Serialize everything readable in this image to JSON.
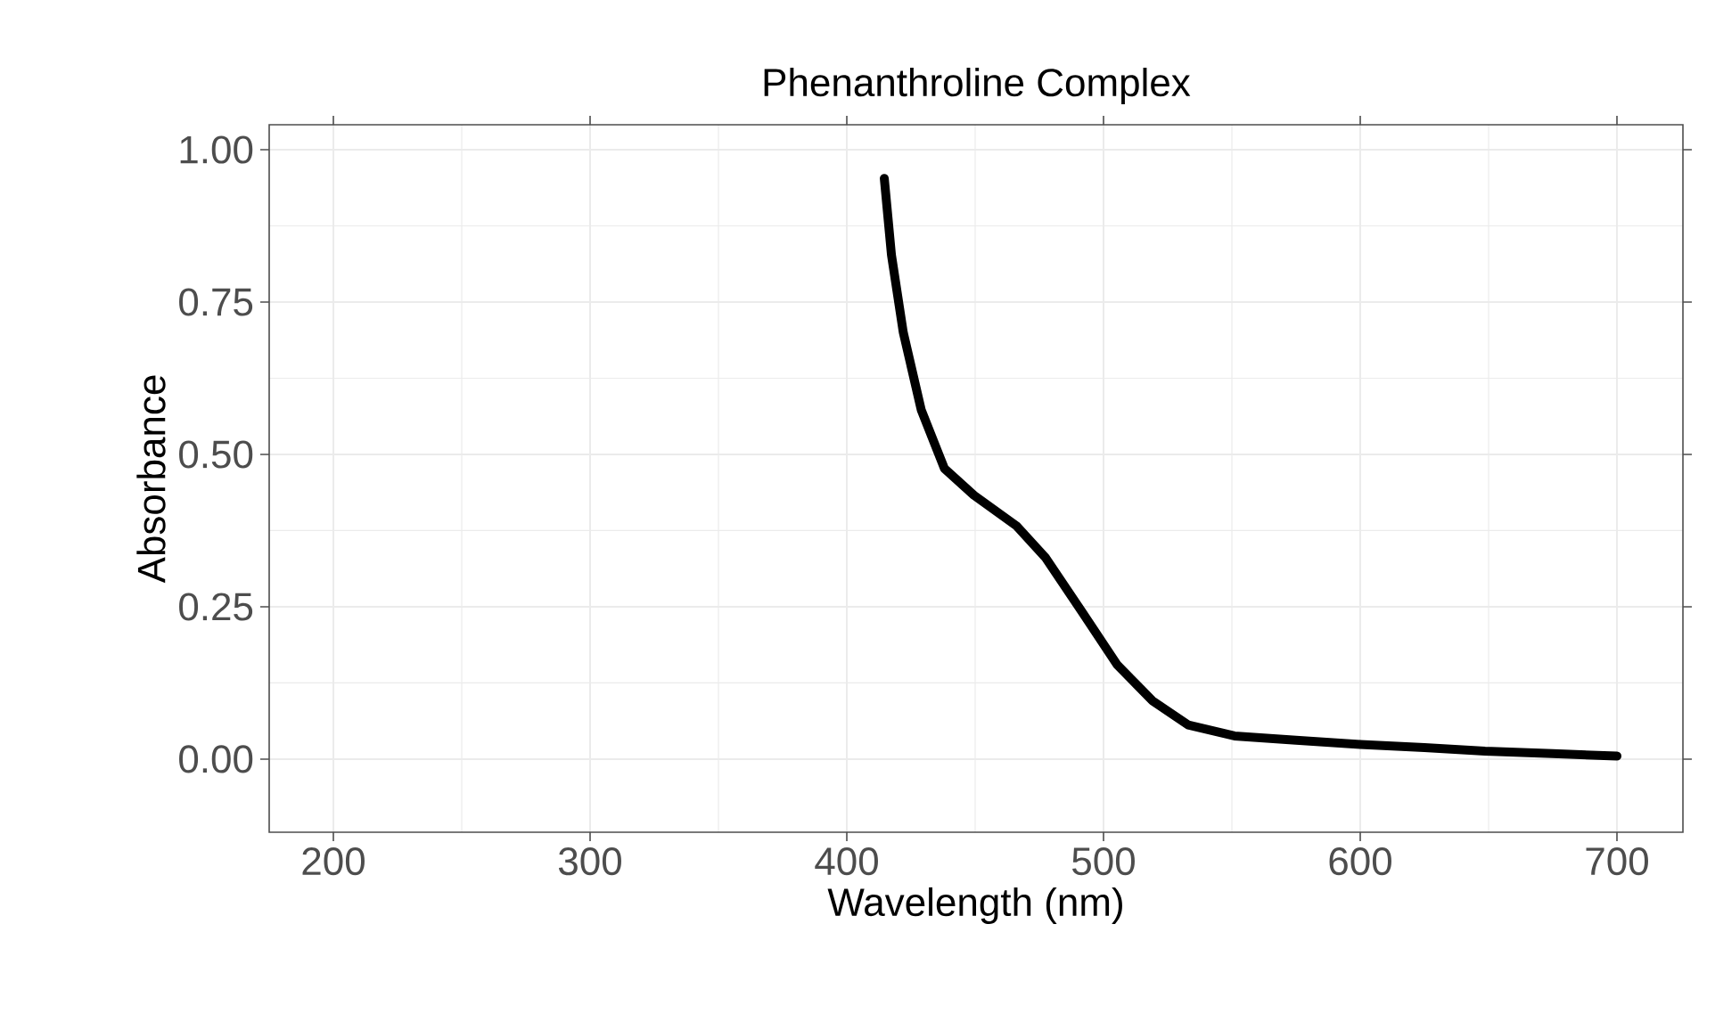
{
  "chart_data": {
    "type": "line",
    "title": "Phenanthroline Complex",
    "xlabel": "Wavelength (nm)",
    "ylabel": "Absorbance",
    "series": [
      {
        "color": "#000000",
        "x": [
          414.6,
          417.4,
          422,
          429,
          438,
          449.5,
          466,
          477.5,
          491.4,
          505.3,
          519,
          533,
          551,
          575,
          600,
          625,
          648.6,
          675,
          700
        ],
        "values": [
          0.953,
          0.827,
          0.7,
          0.573,
          0.477,
          0.433,
          0.383,
          0.33,
          0.243,
          0.155,
          0.096,
          0.056,
          0.038,
          0.031,
          0.024,
          0.019,
          0.013,
          0.009,
          0.005
        ]
      }
    ],
    "xlim": [
      175,
      725.7
    ],
    "ylim": [
      -0.12,
      1.041
    ],
    "xticks": [
      200,
      300,
      400,
      500,
      600,
      700
    ],
    "yticks": [
      {
        "value": 0,
        "label": "0.00"
      },
      {
        "value": 0.25,
        "label": "0.25"
      },
      {
        "value": 0.5,
        "label": "0.50"
      },
      {
        "value": 0.75,
        "label": "0.75"
      },
      {
        "value": 1,
        "label": "1.00"
      }
    ],
    "grid": true,
    "marker": "none",
    "line_style": "solid"
  }
}
